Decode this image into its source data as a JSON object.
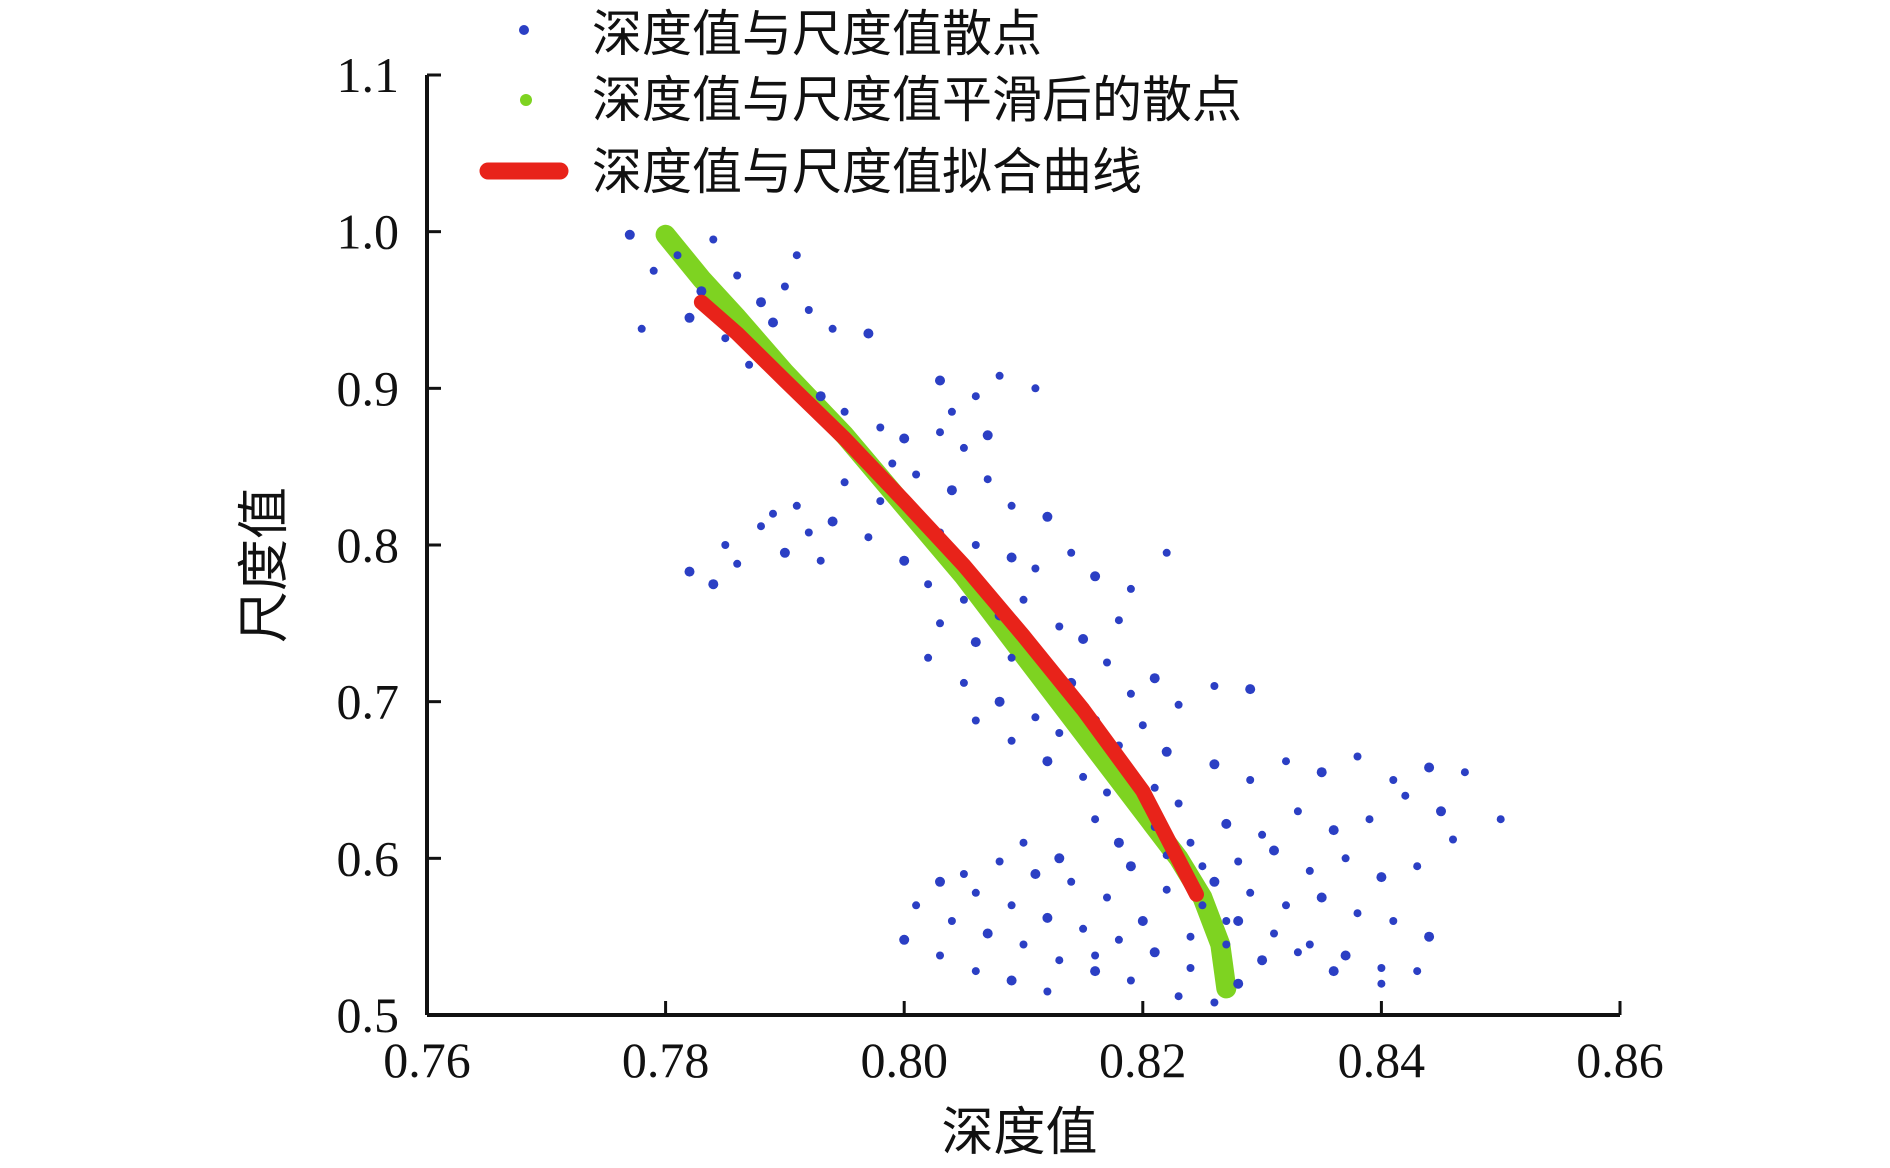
{
  "chart_data": {
    "type": "scatter",
    "xlabel": "深度值",
    "ylabel": "尺度值",
    "xlim": [
      0.76,
      0.86
    ],
    "ylim": [
      0.5,
      1.1
    ],
    "x_ticks": [
      "0.76",
      "0.78",
      "0.80",
      "0.82",
      "0.84",
      "0.86"
    ],
    "y_ticks": [
      "0.5",
      "0.6",
      "0.7",
      "0.8",
      "0.9",
      "1.0",
      "1.1"
    ],
    "legend_placement": "top",
    "colors": {
      "scatter": "#2b3fc4",
      "smoothed": "#7ed321",
      "fit": "#e8231a"
    },
    "series": [
      {
        "name": "深度值与尺度值散点",
        "kind": "points",
        "points": [
          [
            0.777,
            0.998
          ],
          [
            0.779,
            0.975
          ],
          [
            0.781,
            0.985
          ],
          [
            0.783,
            0.962
          ],
          [
            0.784,
            0.995
          ],
          [
            0.786,
            0.972
          ],
          [
            0.788,
            0.955
          ],
          [
            0.79,
            0.965
          ],
          [
            0.791,
            0.985
          ],
          [
            0.782,
            0.945
          ],
          [
            0.778,
            0.938
          ],
          [
            0.785,
            0.932
          ],
          [
            0.789,
            0.942
          ],
          [
            0.792,
            0.95
          ],
          [
            0.794,
            0.938
          ],
          [
            0.797,
            0.935
          ],
          [
            0.787,
            0.915
          ],
          [
            0.79,
            0.905
          ],
          [
            0.793,
            0.895
          ],
          [
            0.795,
            0.885
          ],
          [
            0.798,
            0.875
          ],
          [
            0.8,
            0.868
          ],
          [
            0.803,
            0.872
          ],
          [
            0.805,
            0.862
          ],
          [
            0.807,
            0.87
          ],
          [
            0.804,
            0.885
          ],
          [
            0.806,
            0.895
          ],
          [
            0.803,
            0.905
          ],
          [
            0.808,
            0.908
          ],
          [
            0.811,
            0.9
          ],
          [
            0.796,
            0.86
          ],
          [
            0.799,
            0.852
          ],
          [
            0.801,
            0.845
          ],
          [
            0.804,
            0.835
          ],
          [
            0.807,
            0.842
          ],
          [
            0.809,
            0.825
          ],
          [
            0.812,
            0.818
          ],
          [
            0.795,
            0.84
          ],
          [
            0.798,
            0.828
          ],
          [
            0.801,
            0.818
          ],
          [
            0.803,
            0.808
          ],
          [
            0.806,
            0.8
          ],
          [
            0.809,
            0.792
          ],
          [
            0.811,
            0.785
          ],
          [
            0.814,
            0.795
          ],
          [
            0.816,
            0.78
          ],
          [
            0.819,
            0.772
          ],
          [
            0.822,
            0.795
          ],
          [
            0.782,
            0.783
          ],
          [
            0.785,
            0.8
          ],
          [
            0.788,
            0.812
          ],
          [
            0.79,
            0.795
          ],
          [
            0.792,
            0.808
          ],
          [
            0.786,
            0.788
          ],
          [
            0.784,
            0.775
          ],
          [
            0.789,
            0.82
          ],
          [
            0.791,
            0.825
          ],
          [
            0.794,
            0.815
          ],
          [
            0.797,
            0.805
          ],
          [
            0.793,
            0.79
          ],
          [
            0.8,
            0.79
          ],
          [
            0.802,
            0.775
          ],
          [
            0.805,
            0.765
          ],
          [
            0.808,
            0.755
          ],
          [
            0.81,
            0.765
          ],
          [
            0.813,
            0.748
          ],
          [
            0.815,
            0.74
          ],
          [
            0.818,
            0.752
          ],
          [
            0.803,
            0.75
          ],
          [
            0.806,
            0.738
          ],
          [
            0.809,
            0.728
          ],
          [
            0.812,
            0.72
          ],
          [
            0.814,
            0.712
          ],
          [
            0.817,
            0.725
          ],
          [
            0.819,
            0.705
          ],
          [
            0.821,
            0.715
          ],
          [
            0.823,
            0.698
          ],
          [
            0.826,
            0.71
          ],
          [
            0.829,
            0.708
          ],
          [
            0.802,
            0.728
          ],
          [
            0.805,
            0.712
          ],
          [
            0.808,
            0.7
          ],
          [
            0.811,
            0.69
          ],
          [
            0.813,
            0.68
          ],
          [
            0.816,
            0.688
          ],
          [
            0.818,
            0.672
          ],
          [
            0.82,
            0.685
          ],
          [
            0.822,
            0.668
          ],
          [
            0.806,
            0.688
          ],
          [
            0.809,
            0.675
          ],
          [
            0.812,
            0.662
          ],
          [
            0.815,
            0.652
          ],
          [
            0.817,
            0.642
          ],
          [
            0.819,
            0.655
          ],
          [
            0.821,
            0.645
          ],
          [
            0.823,
            0.635
          ],
          [
            0.826,
            0.66
          ],
          [
            0.829,
            0.65
          ],
          [
            0.832,
            0.662
          ],
          [
            0.835,
            0.655
          ],
          [
            0.838,
            0.665
          ],
          [
            0.841,
            0.65
          ],
          [
            0.844,
            0.658
          ],
          [
            0.847,
            0.655
          ],
          [
            0.85,
            0.625
          ],
          [
            0.845,
            0.63
          ],
          [
            0.842,
            0.64
          ],
          [
            0.839,
            0.625
          ],
          [
            0.836,
            0.618
          ],
          [
            0.833,
            0.63
          ],
          [
            0.83,
            0.615
          ],
          [
            0.827,
            0.622
          ],
          [
            0.824,
            0.61
          ],
          [
            0.828,
            0.598
          ],
          [
            0.831,
            0.605
          ],
          [
            0.834,
            0.592
          ],
          [
            0.837,
            0.6
          ],
          [
            0.84,
            0.588
          ],
          [
            0.843,
            0.595
          ],
          [
            0.846,
            0.612
          ],
          [
            0.826,
            0.585
          ],
          [
            0.829,
            0.578
          ],
          [
            0.832,
            0.57
          ],
          [
            0.835,
            0.575
          ],
          [
            0.838,
            0.565
          ],
          [
            0.841,
            0.56
          ],
          [
            0.844,
            0.55
          ],
          [
            0.822,
            0.58
          ],
          [
            0.825,
            0.57
          ],
          [
            0.828,
            0.56
          ],
          [
            0.831,
            0.552
          ],
          [
            0.834,
            0.545
          ],
          [
            0.837,
            0.538
          ],
          [
            0.84,
            0.53
          ],
          [
            0.843,
            0.528
          ],
          [
            0.836,
            0.528
          ],
          [
            0.84,
            0.52
          ],
          [
            0.833,
            0.54
          ],
          [
            0.83,
            0.535
          ],
          [
            0.827,
            0.545
          ],
          [
            0.824,
            0.53
          ],
          [
            0.821,
            0.54
          ],
          [
            0.818,
            0.548
          ],
          [
            0.815,
            0.555
          ],
          [
            0.812,
            0.562
          ],
          [
            0.809,
            0.57
          ],
          [
            0.806,
            0.578
          ],
          [
            0.803,
            0.585
          ],
          [
            0.801,
            0.57
          ],
          [
            0.804,
            0.56
          ],
          [
            0.807,
            0.552
          ],
          [
            0.81,
            0.545
          ],
          [
            0.813,
            0.535
          ],
          [
            0.816,
            0.528
          ],
          [
            0.819,
            0.522
          ],
          [
            0.823,
            0.512
          ],
          [
            0.8,
            0.548
          ],
          [
            0.803,
            0.538
          ],
          [
            0.806,
            0.528
          ],
          [
            0.809,
            0.522
          ],
          [
            0.812,
            0.515
          ],
          [
            0.816,
            0.538
          ],
          [
            0.82,
            0.56
          ],
          [
            0.817,
            0.575
          ],
          [
            0.814,
            0.585
          ],
          [
            0.811,
            0.59
          ],
          [
            0.808,
            0.598
          ],
          [
            0.805,
            0.59
          ],
          [
            0.819,
            0.595
          ],
          [
            0.822,
            0.602
          ],
          [
            0.825,
            0.595
          ],
          [
            0.818,
            0.61
          ],
          [
            0.821,
            0.62
          ],
          [
            0.816,
            0.625
          ],
          [
            0.813,
            0.6
          ],
          [
            0.81,
            0.61
          ],
          [
            0.826,
            0.508
          ],
          [
            0.828,
            0.52
          ],
          [
            0.824,
            0.55
          ],
          [
            0.827,
            0.56
          ]
        ]
      },
      {
        "name": "深度值与尺度值平滑后的散点",
        "kind": "curve",
        "points": [
          [
            0.78,
            0.998
          ],
          [
            0.783,
            0.97
          ],
          [
            0.786,
            0.945
          ],
          [
            0.79,
            0.91
          ],
          [
            0.795,
            0.87
          ],
          [
            0.8,
            0.825
          ],
          [
            0.805,
            0.78
          ],
          [
            0.81,
            0.73
          ],
          [
            0.815,
            0.68
          ],
          [
            0.82,
            0.63
          ],
          [
            0.823,
            0.6
          ],
          [
            0.825,
            0.575
          ],
          [
            0.8265,
            0.545
          ],
          [
            0.827,
            0.517
          ]
        ]
      },
      {
        "name": "深度值与尺度值拟合曲线",
        "kind": "curve",
        "points": [
          [
            0.783,
            0.955
          ],
          [
            0.786,
            0.935
          ],
          [
            0.79,
            0.905
          ],
          [
            0.795,
            0.868
          ],
          [
            0.8,
            0.828
          ],
          [
            0.805,
            0.787
          ],
          [
            0.81,
            0.742
          ],
          [
            0.815,
            0.695
          ],
          [
            0.82,
            0.643
          ],
          [
            0.8245,
            0.577
          ]
        ]
      }
    ]
  }
}
